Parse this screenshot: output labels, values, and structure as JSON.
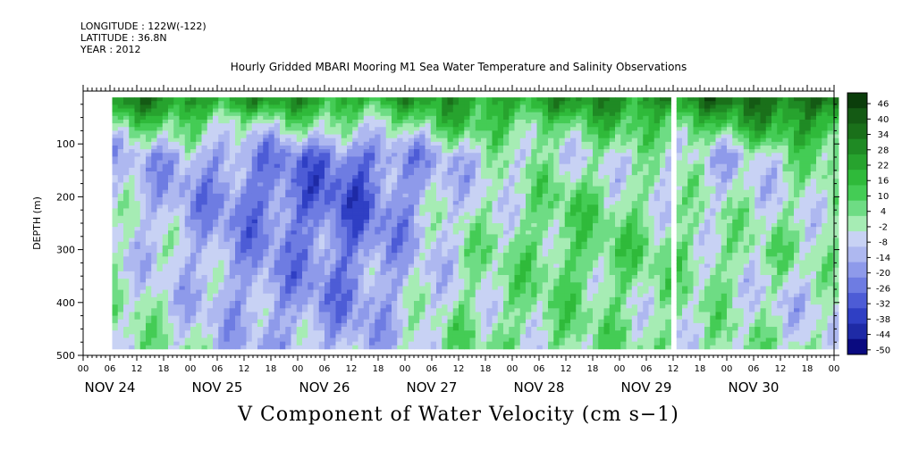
{
  "header": {
    "longitude": "LONGITUDE : 122W(-122)",
    "latitude": "LATITUDE : 36.8N",
    "year": "YEAR : 2012"
  },
  "chart_data": {
    "type": "heatmap",
    "title": "Hourly Gridded MBARI Mooring M1 Sea Water Temperature and Salinity Observations",
    "bottom_label": "V Component of Water Velocity (cm s−1)",
    "ylabel": "DEPTH (m)",
    "ylim": [
      500,
      0
    ],
    "y_tick_labels": [
      "100",
      "200",
      "300",
      "400",
      "500"
    ],
    "y_ticks": [
      100,
      200,
      300,
      400,
      500
    ],
    "x_range_hours": [
      0,
      168
    ],
    "x_hour_tick_labels": [
      "00",
      "06",
      "12",
      "18",
      "00",
      "06",
      "12",
      "18",
      "00",
      "06",
      "12",
      "18",
      "00",
      "06",
      "12",
      "18",
      "00",
      "06",
      "12",
      "18",
      "00",
      "06",
      "12",
      "18",
      "00",
      "06",
      "12",
      "18",
      "00"
    ],
    "day_labels": [
      "NOV 24",
      "NOV 25",
      "NOV 26",
      "NOV 27",
      "NOV 28",
      "NOV 29",
      "NOV 30"
    ],
    "data_extent": {
      "start_hour": 6.5,
      "end_hour": 168,
      "top_depth_m": 12,
      "bottom_depth_m": 485
    },
    "gap_hours": [
      131.5,
      132.5
    ],
    "colorbar": {
      "labels": [
        "46",
        "40",
        "34",
        "28",
        "22",
        "16",
        "10",
        "4",
        "-2",
        "-8",
        "-14",
        "-20",
        "-26",
        "-32",
        "-38",
        "-44",
        "-50"
      ],
      "colors": [
        "#0b3d0b",
        "#145a14",
        "#1a701a",
        "#1f8a24",
        "#27a32e",
        "#2fba3a",
        "#44cc55",
        "#6edc84",
        "#a6ecb4",
        "#c8d2f4",
        "#aeb8f0",
        "#8e9aea",
        "#6e7ce2",
        "#4d5cd6",
        "#2f3fc4",
        "#1e2aa6",
        "#0a0a80"
      ]
    },
    "field_sample": {
      "rows_depth_m": [
        15,
        60,
        120,
        200,
        300,
        400,
        480
      ],
      "cols_hour": [
        12,
        36,
        60,
        84,
        108,
        144,
        162
      ],
      "values": [
        [
          30,
          26,
          22,
          24,
          26,
          34,
          40
        ],
        [
          8,
          2,
          0,
          12,
          10,
          16,
          24
        ],
        [
          -10,
          -18,
          -26,
          -8,
          0,
          -8,
          4
        ],
        [
          -8,
          -22,
          -28,
          -4,
          8,
          -4,
          0
        ],
        [
          -4,
          -16,
          -22,
          0,
          10,
          4,
          2
        ],
        [
          0,
          -14,
          -18,
          2,
          6,
          0,
          -6
        ],
        [
          2,
          -10,
          -12,
          4,
          4,
          2,
          0
        ]
      ]
    }
  }
}
